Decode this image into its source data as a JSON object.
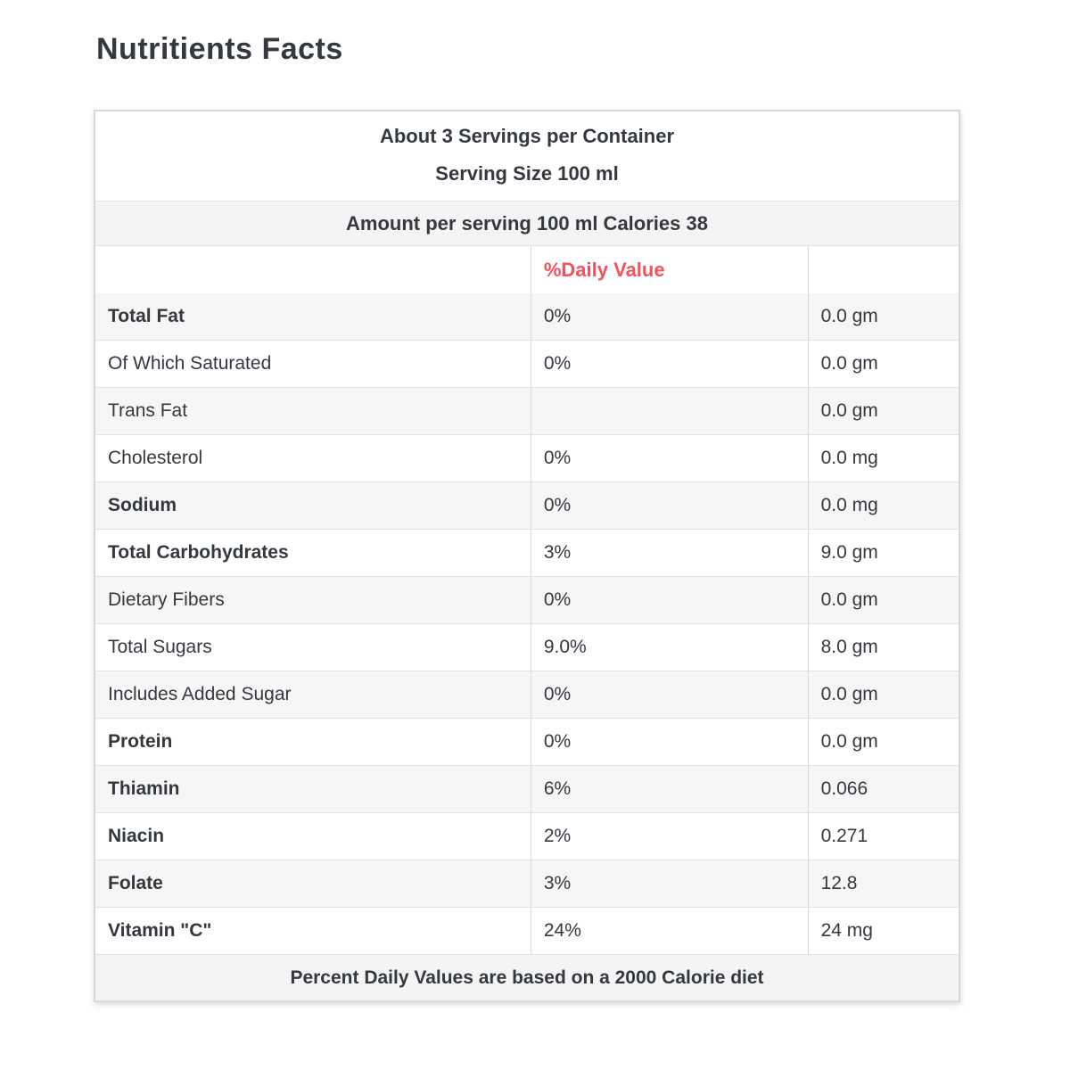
{
  "page": {
    "title": "Nutritients Facts"
  },
  "colors": {
    "title_yellow": "#ffc40c",
    "daily_value_red": "#f4515c",
    "stripe_gray": "#f6f6f6",
    "text_dark": "#34383f"
  },
  "table": {
    "servings_line": "About 3 Servings per Container",
    "serving_size_line": "Serving Size 100 ml",
    "amount_line": "Amount per serving 100 ml Calories 38",
    "daily_value_header": "%Daily Value",
    "rows": [
      {
        "label": "Total Fat",
        "bold": true,
        "percent": "0%",
        "amount": "0.0 gm"
      },
      {
        "label": "Of Which Saturated",
        "bold": false,
        "percent": "0%",
        "amount": "0.0 gm"
      },
      {
        "label": "Trans Fat",
        "bold": false,
        "percent": "",
        "amount": "0.0 gm"
      },
      {
        "label": "Cholesterol",
        "bold": false,
        "percent": "0%",
        "amount": "0.0 mg"
      },
      {
        "label": "Sodium",
        "bold": true,
        "percent": "0%",
        "amount": "0.0 mg"
      },
      {
        "label": "Total Carbohydrates",
        "bold": true,
        "percent": "3%",
        "amount": "9.0 gm"
      },
      {
        "label": "Dietary Fibers",
        "bold": false,
        "percent": "0%",
        "amount": "0.0 gm"
      },
      {
        "label": "Total Sugars",
        "bold": false,
        "percent": "9.0%",
        "amount": "8.0 gm"
      },
      {
        "label": "Includes Added Sugar",
        "bold": false,
        "percent": "0%",
        "amount": "0.0 gm"
      },
      {
        "label": "Protein",
        "bold": true,
        "percent": "0%",
        "amount": "0.0 gm"
      },
      {
        "label": "Thiamin",
        "bold": true,
        "percent": "6%",
        "amount": "0.066"
      },
      {
        "label": "Niacin",
        "bold": true,
        "percent": "2%",
        "amount": "0.271"
      },
      {
        "label": "Folate",
        "bold": true,
        "percent": "3%",
        "amount": "12.8"
      },
      {
        "label": "Vitamin \"C\"",
        "bold": true,
        "percent": "24%",
        "amount": "24 mg"
      }
    ],
    "footer": "Percent Daily Values are based on a 2000 Calorie diet"
  }
}
